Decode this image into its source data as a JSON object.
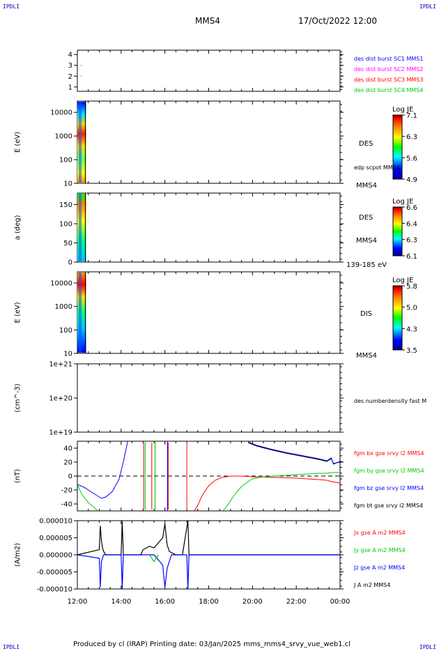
{
  "corners": {
    "tl": "IPDLI",
    "tr": "IPDLI",
    "bl": "IPDLI",
    "br": "IPDLI"
  },
  "header": {
    "spacecraft": "MMS4",
    "datetime": "17/Oct/2022 12:00"
  },
  "footer": "Produced by cl (IRAP)   Printing date: 03/Jan/2025   mms_mms4_srvy_vue_web1.cl",
  "x_axis": {
    "ticks": [
      "12:00",
      "14:00",
      "16:00",
      "18:00",
      "20:00",
      "22:00",
      "00:00"
    ]
  },
  "colors": {
    "blue": "#0000ff",
    "magenta": "#ff00ff",
    "red": "#ff0000",
    "green": "#00cc00",
    "black": "#000000"
  },
  "chart_data": [
    {
      "type": "scatter",
      "ylabel": "",
      "yticks": [
        "4",
        "3",
        "2",
        "1"
      ],
      "ylim": [
        1,
        4
      ],
      "legend": [
        {
          "label": "des dist burst SC1 MMS1",
          "color": "#0000ff"
        },
        {
          "label": "des dist burst SC2 MMS2",
          "color": "#ff00ff"
        },
        {
          "label": "des dist burst SC3 MMS3",
          "color": "#ff0000"
        },
        {
          "label": "des dist burst SC4 MMS4",
          "color": "#00cc00"
        }
      ],
      "points": [
        {
          "x": "12:10",
          "y": 3.0,
          "color": "#ff00ff"
        },
        {
          "x": "12:10",
          "y": 2.0,
          "color": "#ff00ff"
        }
      ]
    },
    {
      "type": "heatmap",
      "ylabel": "E (eV)",
      "yscale": "log",
      "ylim": [
        10,
        30000
      ],
      "yticks": [
        "10000",
        "1000",
        "100",
        "10"
      ],
      "x_range": [
        "12:00",
        "12:24"
      ],
      "side_labels": [
        "DES",
        "edp scpot MMS4",
        "MMS4"
      ],
      "colorbar": {
        "label": "Log JE",
        "ticks": [
          "7.1",
          "6.3",
          "5.6",
          "4.9"
        ]
      }
    },
    {
      "type": "heatmap",
      "ylabel": "a (deg)",
      "ylim": [
        0,
        180
      ],
      "yticks": [
        "150",
        "100",
        "50",
        "0"
      ],
      "x_range": [
        "12:00",
        "12:24"
      ],
      "side_labels": [
        "DES",
        "MMS4",
        "139-185 eV"
      ],
      "colorbar": {
        "label": "Log JE",
        "ticks": [
          "6.6",
          "6.4",
          "6.3",
          "6.1"
        ]
      }
    },
    {
      "type": "heatmap",
      "ylabel": "E (eV)",
      "yscale": "log",
      "ylim": [
        10,
        30000
      ],
      "yticks": [
        "10000",
        "1000",
        "100",
        "10"
      ],
      "x_range": [
        "12:00",
        "12:24"
      ],
      "side_labels": [
        "DIS",
        "MMS4"
      ],
      "colorbar": {
        "label": "Log JE",
        "ticks": [
          "5.8",
          "5.0",
          "4.3",
          "3.5"
        ]
      }
    },
    {
      "type": "line",
      "ylabel": "(cm^-3)",
      "yscale": "log",
      "yticks": [
        "1e+21",
        "1e+20",
        "1e+19"
      ],
      "legend": [
        {
          "label": "des numberdensity fast M",
          "color": "#000000"
        }
      ],
      "series": []
    },
    {
      "type": "line",
      "ylabel": "(nT)",
      "ylim": [
        -50,
        50
      ],
      "yticks": [
        "40",
        "20",
        "0",
        "-20",
        "-40"
      ],
      "legend": [
        {
          "label": "fgm bx gse srvy l2 MMS4",
          "color": "#ff0000"
        },
        {
          "label": "fgm by gse srvy l2 MMS4",
          "color": "#00cc00"
        },
        {
          "label": "fgm bz gse srvy l2 MMS4",
          "color": "#0000ff"
        },
        {
          "label": "fgm bt gse srvy l2 MMS4",
          "color": "#000000"
        }
      ],
      "series": [
        {
          "name": "fgm bz gse srvy l2 MMS4",
          "color": "#0000ff",
          "x": [
            0.0,
            0.3,
            0.6,
            0.9,
            1.1,
            1.3,
            1.6,
            1.9,
            2.1,
            2.3
          ],
          "y": [
            -12,
            -16,
            -22,
            -28,
            -32,
            -30,
            -22,
            -5,
            20,
            50
          ]
        },
        {
          "name": "fgm by gse srvy l2 MMS4",
          "color": "#00cc00",
          "x": [
            0.0,
            0.2,
            0.5,
            0.8,
            1.0
          ],
          "y": [
            -12,
            -26,
            -38,
            -46,
            -52
          ]
        },
        {
          "name": "fgm bx gse srvy l2 MMS4",
          "color": "#ff0000",
          "x": [
            5.3,
            5.5,
            5.7,
            6.0,
            6.3,
            6.6,
            7.0,
            7.5,
            8.0,
            9.0,
            10.0,
            10.5,
            11.0,
            11.4,
            11.6,
            11.8,
            12.0
          ],
          "y": [
            -52,
            -42,
            -28,
            -14,
            -6,
            -2,
            0,
            0,
            -1,
            -2,
            -3,
            -4,
            -5,
            -6,
            -8,
            -9,
            -10
          ]
        },
        {
          "name": "fgm by gse srvy l2 MMS4",
          "color": "#00cc00",
          "x": [
            6.6,
            6.9,
            7.2,
            7.5,
            7.8,
            8.0,
            8.3,
            8.6,
            9.0,
            9.5,
            10.0,
            10.5,
            11.0,
            11.4,
            11.6,
            12.0
          ],
          "y": [
            -52,
            -40,
            -26,
            -15,
            -8,
            -4,
            -2,
            -1,
            0,
            1,
            2,
            3,
            4,
            4,
            5,
            5
          ]
        },
        {
          "name": "fgm bt gse srvy l2 MMS4",
          "color": "#000000",
          "x": [
            7.8,
            8.2,
            8.8,
            9.5,
            10.0,
            10.5,
            11.0,
            11.4,
            11.6,
            11.7,
            12.0
          ],
          "y": [
            48,
            43,
            38,
            33,
            30,
            27,
            24,
            21,
            25,
            18,
            20
          ]
        },
        {
          "name": "fgm bz gse srvy l2 MMS4",
          "color": "#0000ff",
          "x": [
            7.8,
            8.2,
            8.8,
            9.5,
            10.0,
            10.5,
            11.0,
            11.4,
            11.6,
            11.7,
            12.0
          ],
          "y": [
            49,
            44,
            39,
            34,
            31,
            28,
            25,
            22,
            26,
            17,
            21
          ]
        },
        {
          "name": "fgm by gse srvy l2 MMS4",
          "color": "#00cc00",
          "x": [
            3.1,
            3.1
          ],
          "y": [
            -50,
            50
          ]
        },
        {
          "name": "fgm by gse srvy l2 MMS4",
          "color": "#00cc00",
          "x": [
            3.55,
            3.55
          ],
          "y": [
            -50,
            50
          ]
        },
        {
          "name": "fgm bz gse srvy l2 MMS4",
          "color": "#0000ff",
          "x": [
            4.12,
            4.12
          ],
          "y": [
            -50,
            50
          ]
        }
      ]
    },
    {
      "type": "line",
      "ylabel": "(A/m2)",
      "ylim": [
        -1e-05,
        1e-05
      ],
      "yticks": [
        "0.000010",
        "0.000005",
        "0.000000",
        "-0.000005",
        "-0.000010"
      ],
      "legend": [
        {
          "label": "Jx gse A m2 MMS4",
          "color": "#ff0000"
        },
        {
          "label": "Jy gse A m2 MMS4",
          "color": "#00cc00"
        },
        {
          "label": "Jz gse A m2 MMS4",
          "color": "#0000ff"
        },
        {
          "label": "J A m2 MMS4",
          "color": "#000000"
        }
      ],
      "series": [
        {
          "name": "J A m2 MMS4",
          "color": "#000000",
          "x": [
            0,
            1.0,
            1.05,
            1.1,
            1.15,
            1.2,
            1.3,
            2.0,
            2.05,
            2.1,
            2.9,
            3.0,
            3.3,
            3.5,
            3.7,
            3.9,
            4.0,
            4.1,
            4.2,
            4.5,
            4.8,
            5.05,
            5.1,
            5.2,
            6.0,
            12.0
          ],
          "y": [
            0,
            1.5e-06,
            8.5e-06,
            4e-06,
            2e-06,
            1e-06,
            0,
            0,
            1e-05,
            0,
            0,
            1.5e-06,
            2.5e-06,
            2e-06,
            3.5e-06,
            5e-06,
            9e-06,
            3e-06,
            1e-06,
            0,
            0,
            1e-05,
            0,
            0,
            0,
            0
          ]
        },
        {
          "name": "Jz gse A m2 MMS4",
          "color": "#0000ff",
          "x": [
            0,
            1.0,
            1.05,
            1.1,
            1.2,
            2.0,
            2.05,
            2.1,
            3.5,
            3.9,
            4.0,
            4.1,
            4.3,
            5.0,
            5.05,
            5.1,
            12.0
          ],
          "y": [
            0,
            -1e-06,
            -9.5e-06,
            -2e-06,
            0,
            0,
            -1e-05,
            0,
            0,
            -3e-06,
            -9.5e-06,
            -4e-06,
            0,
            0,
            -1e-05,
            0,
            0
          ]
        },
        {
          "name": "Jy gse A m2 MMS4",
          "color": "#00cc00",
          "x": [
            3.3,
            3.4,
            3.5,
            3.6,
            3.7
          ],
          "y": [
            0,
            -1e-06,
            -2e-06,
            -1e-06,
            0
          ]
        }
      ]
    }
  ]
}
